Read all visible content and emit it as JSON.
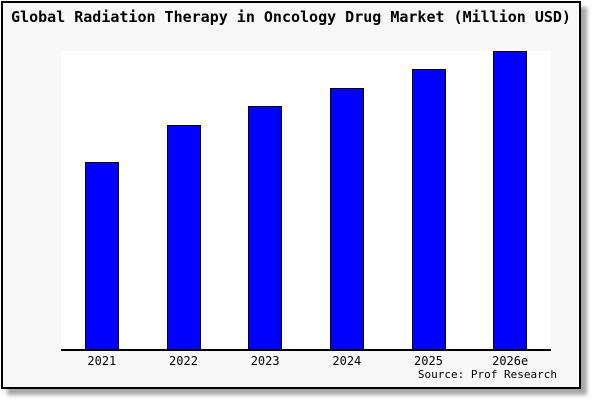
{
  "chart": {
    "title": "Global Radiation Therapy in Oncology Drug Market (Million USD)",
    "source": "Source: Prof Research",
    "chart_data": {
      "type": "bar",
      "title": "Global Radiation Therapy in Oncology Drug Market (Million USD)",
      "categories": [
        "2021",
        "2022",
        "2023",
        "2024",
        "2025",
        "2026e"
      ],
      "values": [
        62.8,
        75.3,
        81.5,
        87.6,
        93.8,
        100
      ],
      "value_basis": "relative bar height as percent of tallest bar; no y-axis scale or gridlines are shown in the image",
      "xlabel": "",
      "ylabel": "",
      "ylim": [
        0,
        100
      ],
      "grid": false,
      "legend": "none",
      "annotation": "Source: Prof Research"
    },
    "colors": {
      "bar_fill": "#0000fe",
      "bar_border": "#000000",
      "frame_background": "#f8f8f8",
      "plot_background": "#ffffff",
      "text": "#000000"
    }
  }
}
